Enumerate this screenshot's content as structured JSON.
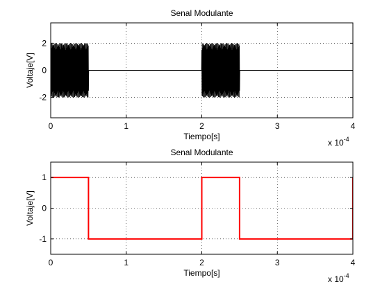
{
  "chart_data": [
    {
      "type": "line",
      "title": "Senal Modulante",
      "xlabel": "Tiempo[s]",
      "ylabel": "Voltaje[V]",
      "x_multiplier": "x 10",
      "x_exponent": "-4",
      "xlim": [
        0,
        4
      ],
      "ylim": [
        -3.5,
        3.5
      ],
      "xticks": [
        0,
        1,
        2,
        3,
        4
      ],
      "yticks": [
        -2,
        0,
        2
      ],
      "grid": true,
      "color": "#000000",
      "series": [
        {
          "signal": "bursts of oscillation between -2 and 2 while the modulating square wave is high, 0 otherwise",
          "amplitude": 2,
          "burst_intervals": [
            [
              0,
              0.5
            ],
            [
              2.0,
              2.5
            ]
          ],
          "idle_value": 0
        }
      ]
    },
    {
      "type": "line",
      "title": "Senal Modulante",
      "xlabel": "Tiempo[s]",
      "ylabel": "Voltaje[V]",
      "x_multiplier": "x 10",
      "x_exponent": "-4",
      "xlim": [
        0,
        4
      ],
      "ylim": [
        -1.5,
        1.5
      ],
      "xticks": [
        0,
        1,
        2,
        3,
        4
      ],
      "yticks": [
        -1,
        0,
        1
      ],
      "grid": true,
      "color": "#ff0000",
      "series": [
        {
          "x": [
            0,
            0.5,
            0.5,
            2.0,
            2.0,
            2.5,
            2.5,
            4.0,
            4.0
          ],
          "y": [
            1,
            1,
            -1,
            -1,
            1,
            1,
            -1,
            -1,
            1
          ]
        }
      ]
    }
  ]
}
